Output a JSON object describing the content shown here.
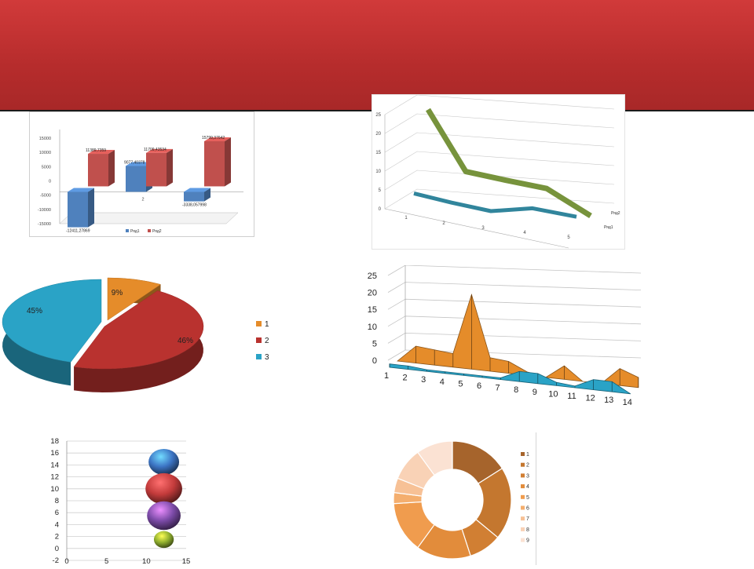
{
  "chart_data": [
    {
      "type": "bar",
      "categories": [
        "1",
        "2",
        "3"
      ],
      "series": [
        {
          "name": "Ряд1",
          "values": [
            -12411.27869,
            9077.4,
            -3338.057998
          ],
          "labels": [
            "-12411,27869",
            "9077,40378",
            "-3338,057998"
          ]
        },
        {
          "name": "Ряд2",
          "values": [
            11389.7,
            11709.4,
            15799.4
          ],
          "labels": [
            "11389,7359",
            "11709,43534",
            "15799,37642"
          ]
        }
      ],
      "yticks": [
        "15000",
        "10000",
        "5000",
        "0",
        "-5000",
        "-10000",
        "-15000",
        "20000"
      ],
      "ylim": [
        -15000,
        20000
      ],
      "legend": "bottom",
      "colors": [
        "#4f81bd",
        "#c0504d"
      ]
    },
    {
      "type": "line",
      "categories": [
        "1",
        "2",
        "3",
        "4",
        "5"
      ],
      "series": [
        {
          "name": "Ряд1",
          "values": [
            2,
            1,
            0,
            2,
            1
          ]
        },
        {
          "name": "Ряд2",
          "values": [
            23,
            8,
            7,
            6,
            0
          ]
        }
      ],
      "yticks": [
        "0",
        "5",
        "10",
        "15",
        "20",
        "25"
      ],
      "ylim": [
        0,
        25
      ],
      "legend": "right",
      "colors": [
        "#31859c",
        "#77933c"
      ]
    },
    {
      "type": "pie",
      "labels": [
        "1",
        "2",
        "3"
      ],
      "values": [
        9,
        46,
        45
      ],
      "value_labels": [
        "9%",
        "46%",
        "45%"
      ],
      "legend": "right",
      "colors": [
        "#e58c2a",
        "#b9322f",
        "#2aa3c6"
      ]
    },
    {
      "type": "area",
      "categories": [
        "1",
        "2",
        "3",
        "4",
        "5",
        "6",
        "7",
        "8",
        "9",
        "10",
        "11",
        "12",
        "13",
        "14"
      ],
      "series": [
        {
          "values": [
            0,
            5,
            4.5,
            4,
            22,
            4,
            3.5,
            1,
            0,
            4,
            0,
            0,
            5,
            3
          ]
        },
        {
          "values": [
            1,
            1,
            0.5,
            0.5,
            0.5,
            0.5,
            0.5,
            3,
            3,
            1,
            0.5,
            3,
            3,
            0
          ]
        }
      ],
      "yticks": [
        "0",
        "5",
        "10",
        "15",
        "20",
        "25"
      ],
      "ylim": [
        0,
        25
      ],
      "colors": [
        "#e58c2a",
        "#2aa3c6"
      ]
    },
    {
      "type": "scatter",
      "points": [
        {
          "x": 12,
          "y": 14.5,
          "size": 1.0
        },
        {
          "x": 12,
          "y": 10,
          "size": 1.2
        },
        {
          "x": 12,
          "y": 5.5,
          "size": 1.1
        },
        {
          "x": 12,
          "y": 1.5,
          "size": 0.65
        }
      ],
      "yticks": [
        "-2",
        "0",
        "2",
        "4",
        "6",
        "8",
        "10",
        "12",
        "14",
        "16",
        "18"
      ],
      "xticks": [
        "0",
        "5",
        "10",
        "15"
      ],
      "xlim": [
        0,
        15
      ],
      "ylim": [
        -2,
        18
      ],
      "colors": [
        "#3c74c4",
        "#c33b3b",
        "#7c4ba8",
        "#8fae2e"
      ]
    },
    {
      "type": "pie",
      "donut": true,
      "labels": [
        "1",
        "2",
        "3",
        "4",
        "5",
        "6",
        "7",
        "8",
        "9"
      ],
      "values": [
        16,
        20,
        9,
        15,
        14,
        3,
        4,
        9,
        10
      ],
      "legend": "right",
      "colors": [
        "#a6642c",
        "#c4772f",
        "#d17f33",
        "#e28c3b",
        "#f09c4e",
        "#f4ae6e",
        "#f7c196",
        "#f9d2b6",
        "#fbe2d3"
      ]
    }
  ]
}
